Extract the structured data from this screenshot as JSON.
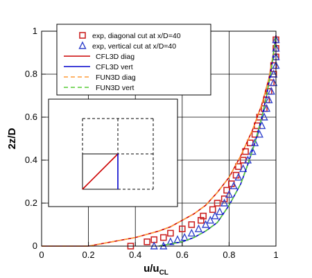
{
  "chart_data": {
    "type": "line",
    "xlabel": "u/u",
    "xlabel_sub": "CL",
    "ylabel": "2z/D",
    "xlim": [
      0,
      1
    ],
    "ylim": [
      0,
      1
    ],
    "grid": true,
    "xticks": [
      0,
      0.2,
      0.4,
      0.6,
      0.8,
      1
    ],
    "yticks": [
      0,
      0.2,
      0.4,
      0.6,
      0.8,
      1
    ],
    "xtick_labels": [
      "0",
      "0.2",
      "0.4",
      "0.6",
      "0.8",
      "1"
    ],
    "ytick_labels": [
      "0",
      "0.2",
      "0.4",
      "0.6",
      "0.8",
      "1"
    ],
    "legend_position": "top-left",
    "series": [
      {
        "name": "exp, diagonal cut at x/D=40",
        "kind": "marker",
        "marker": "square",
        "color": "#cc2222",
        "points": [
          [
            0.38,
            0.0
          ],
          [
            0.45,
            0.02
          ],
          [
            0.48,
            0.03
          ],
          [
            0.52,
            0.04
          ],
          [
            0.55,
            0.06
          ],
          [
            0.6,
            0.08
          ],
          [
            0.64,
            0.1
          ],
          [
            0.68,
            0.12
          ],
          [
            0.69,
            0.14
          ],
          [
            0.73,
            0.17
          ],
          [
            0.75,
            0.2
          ],
          [
            0.78,
            0.22
          ],
          [
            0.79,
            0.26
          ],
          [
            0.81,
            0.29
          ],
          [
            0.83,
            0.33
          ],
          [
            0.84,
            0.37
          ],
          [
            0.86,
            0.4
          ],
          [
            0.87,
            0.44
          ],
          [
            0.89,
            0.48
          ],
          [
            0.91,
            0.52
          ],
          [
            0.92,
            0.56
          ],
          [
            0.93,
            0.6
          ],
          [
            0.95,
            0.64
          ],
          [
            0.96,
            0.68
          ],
          [
            0.97,
            0.72
          ],
          [
            0.98,
            0.76
          ],
          [
            0.99,
            0.8
          ],
          [
            0.99,
            0.84
          ],
          [
            1.0,
            0.88
          ],
          [
            1.0,
            0.92
          ],
          [
            1.0,
            0.96
          ]
        ]
      },
      {
        "name": "exp, vertical cut at x/D=40",
        "kind": "marker",
        "marker": "triangle",
        "color": "#3344cc",
        "points": [
          [
            0.48,
            0.0
          ],
          [
            0.52,
            0.0
          ],
          [
            0.55,
            0.02
          ],
          [
            0.58,
            0.03
          ],
          [
            0.61,
            0.04
          ],
          [
            0.64,
            0.06
          ],
          [
            0.67,
            0.08
          ],
          [
            0.7,
            0.1
          ],
          [
            0.72,
            0.12
          ],
          [
            0.74,
            0.14
          ],
          [
            0.76,
            0.16
          ],
          [
            0.78,
            0.2
          ],
          [
            0.8,
            0.24
          ],
          [
            0.82,
            0.28
          ],
          [
            0.84,
            0.32
          ],
          [
            0.86,
            0.36
          ],
          [
            0.88,
            0.4
          ],
          [
            0.9,
            0.44
          ],
          [
            0.91,
            0.48
          ],
          [
            0.93,
            0.52
          ],
          [
            0.94,
            0.56
          ],
          [
            0.95,
            0.6
          ],
          [
            0.96,
            0.64
          ],
          [
            0.97,
            0.68
          ],
          [
            0.98,
            0.72
          ],
          [
            0.99,
            0.76
          ],
          [
            0.99,
            0.8
          ],
          [
            1.0,
            0.84
          ],
          [
            1.0,
            0.88
          ],
          [
            1.0,
            0.92
          ],
          [
            1.0,
            0.96
          ]
        ]
      },
      {
        "name": "CFL3D diag",
        "kind": "line",
        "dash": "solid",
        "color": "#cc0000",
        "points": [
          [
            0.0,
            0.0
          ],
          [
            0.2,
            0.0
          ],
          [
            0.3,
            0.02
          ],
          [
            0.4,
            0.04
          ],
          [
            0.5,
            0.07
          ],
          [
            0.55,
            0.09
          ],
          [
            0.6,
            0.12
          ],
          [
            0.65,
            0.15
          ],
          [
            0.7,
            0.19
          ],
          [
            0.75,
            0.25
          ],
          [
            0.8,
            0.32
          ],
          [
            0.85,
            0.42
          ],
          [
            0.9,
            0.54
          ],
          [
            0.94,
            0.66
          ],
          [
            0.97,
            0.78
          ],
          [
            0.99,
            0.9
          ],
          [
            1.0,
            0.98
          ]
        ]
      },
      {
        "name": "CFL3D vert",
        "kind": "line",
        "dash": "solid",
        "color": "#0000cc",
        "points": [
          [
            0.5,
            0.0
          ],
          [
            0.55,
            0.01
          ],
          [
            0.6,
            0.02
          ],
          [
            0.65,
            0.04
          ],
          [
            0.7,
            0.07
          ],
          [
            0.75,
            0.11
          ],
          [
            0.8,
            0.19
          ],
          [
            0.85,
            0.29
          ],
          [
            0.88,
            0.38
          ],
          [
            0.91,
            0.48
          ],
          [
            0.94,
            0.6
          ],
          [
            0.96,
            0.7
          ],
          [
            0.98,
            0.82
          ],
          [
            0.99,
            0.9
          ],
          [
            1.0,
            0.98
          ]
        ]
      },
      {
        "name": "FUN3D diag",
        "kind": "line",
        "dash": "dashed",
        "color": "#ff9933",
        "points": [
          [
            0.0,
            0.0
          ],
          [
            0.2,
            0.0
          ],
          [
            0.3,
            0.02
          ],
          [
            0.4,
            0.04
          ],
          [
            0.5,
            0.07
          ],
          [
            0.55,
            0.09
          ],
          [
            0.6,
            0.12
          ],
          [
            0.65,
            0.15
          ],
          [
            0.7,
            0.19
          ],
          [
            0.75,
            0.25
          ],
          [
            0.8,
            0.32
          ],
          [
            0.85,
            0.42
          ],
          [
            0.9,
            0.54
          ],
          [
            0.94,
            0.66
          ],
          [
            0.97,
            0.78
          ],
          [
            0.99,
            0.9
          ],
          [
            1.0,
            0.98
          ]
        ]
      },
      {
        "name": "FUN3D vert",
        "kind": "line",
        "dash": "dashed",
        "color": "#55cc33",
        "points": [
          [
            0.5,
            0.0
          ],
          [
            0.55,
            0.01
          ],
          [
            0.6,
            0.02
          ],
          [
            0.65,
            0.04
          ],
          [
            0.7,
            0.07
          ],
          [
            0.75,
            0.11
          ],
          [
            0.8,
            0.19
          ],
          [
            0.85,
            0.29
          ],
          [
            0.88,
            0.38
          ],
          [
            0.91,
            0.48
          ],
          [
            0.94,
            0.6
          ],
          [
            0.96,
            0.7
          ],
          [
            0.98,
            0.82
          ],
          [
            0.99,
            0.9
          ],
          [
            1.0,
            0.98
          ]
        ]
      }
    ]
  },
  "colors": {
    "diag_cut_line": "#cc0000",
    "vert_cut_line": "#0000cc"
  }
}
